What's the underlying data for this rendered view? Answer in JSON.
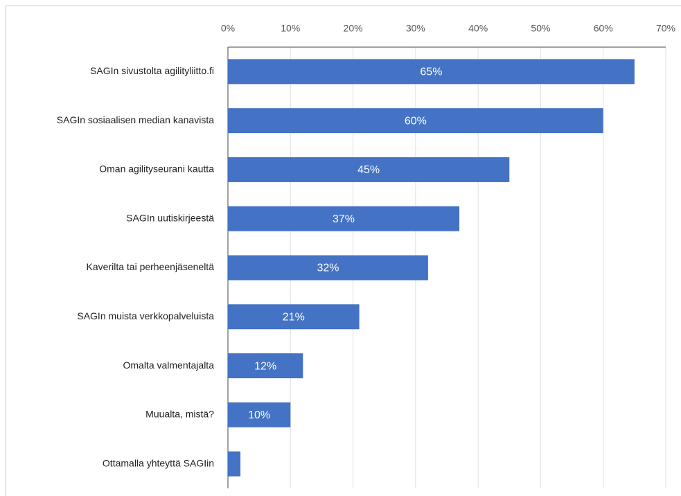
{
  "chart_data": {
    "type": "bar",
    "orientation": "horizontal",
    "categories": [
      "SAGIn sivustolta agilityliitto.fi",
      "SAGIn sosiaalisen median kanavista",
      "Oman agilityseurani kautta",
      "SAGIn uutiskirjeestä",
      "Kaverilta tai perheenjäseneltä",
      "SAGIn muista verkkopalveluista",
      "Omalta valmentajalta",
      "Muualta, mistä?",
      "Ottamalla yhteyttä SAGIin"
    ],
    "values": [
      65,
      60,
      45,
      37,
      32,
      21,
      12,
      10,
      2
    ],
    "value_labels": [
      "65%",
      "60%",
      "45%",
      "37%",
      "32%",
      "21%",
      "12%",
      "10%",
      null
    ],
    "color": "#4472c4",
    "xlim": [
      0,
      70
    ],
    "xticks": [
      {
        "value": 0,
        "label": "0%"
      },
      {
        "value": 10,
        "label": "10%"
      },
      {
        "value": 20,
        "label": "20%"
      },
      {
        "value": 30,
        "label": "30%"
      },
      {
        "value": 40,
        "label": "40%"
      },
      {
        "value": 50,
        "label": "50%"
      },
      {
        "value": 60,
        "label": "60%"
      },
      {
        "value": 70,
        "label": "70%"
      }
    ],
    "grid": true
  }
}
